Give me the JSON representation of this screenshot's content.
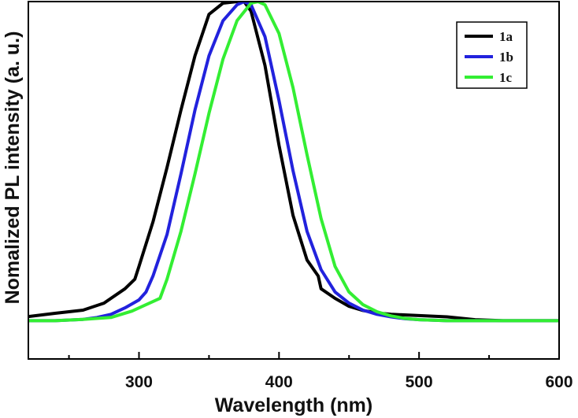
{
  "chart_data": {
    "type": "line",
    "title": "",
    "xlabel": "Wavelength (nm)",
    "ylabel": "Nomalized PL intensity (a. u.)",
    "xlim": [
      221,
      600
    ],
    "ylim": [
      -0.12,
      1.0
    ],
    "grid": false,
    "legend_position": "top-right",
    "x_ticks": [
      300,
      400,
      500,
      600
    ],
    "x_tick_labels": [
      "300",
      "400",
      "500",
      "600"
    ],
    "series": [
      {
        "name": "1a",
        "color": "#000000",
        "x": [
          221,
          240,
          260,
          275,
          290,
          297,
          300,
          310,
          320,
          330,
          340,
          350,
          360,
          370,
          375,
          380,
          390,
          400,
          410,
          420,
          428,
          430,
          440,
          450,
          460,
          470,
          480,
          500,
          520,
          540,
          560,
          580,
          600
        ],
        "y": [
          0.013,
          0.023,
          0.033,
          0.055,
          0.1,
          0.13,
          0.17,
          0.31,
          0.48,
          0.66,
          0.83,
          0.96,
          0.995,
          1.0,
          1.0,
          0.97,
          0.8,
          0.55,
          0.33,
          0.19,
          0.14,
          0.1,
          0.07,
          0.045,
          0.032,
          0.024,
          0.02,
          0.016,
          0.012,
          0.003,
          0.0,
          0.0,
          0.0
        ]
      },
      {
        "name": "1b",
        "color": "#2222dd",
        "x": [
          221,
          240,
          260,
          270,
          280,
          290,
          300,
          305,
          310,
          320,
          330,
          340,
          350,
          360,
          370,
          375,
          380,
          390,
          400,
          410,
          420,
          430,
          440,
          450,
          460,
          470,
          480,
          490,
          500,
          520,
          540,
          560,
          600
        ],
        "y": [
          0.0,
          0.0,
          0.004,
          0.01,
          0.02,
          0.04,
          0.065,
          0.09,
          0.14,
          0.27,
          0.46,
          0.66,
          0.83,
          0.94,
          0.99,
          1.0,
          0.99,
          0.89,
          0.69,
          0.47,
          0.28,
          0.16,
          0.09,
          0.055,
          0.033,
          0.02,
          0.012,
          0.006,
          0.003,
          0.0,
          0.0,
          0.0,
          0.0
        ]
      },
      {
        "name": "1c",
        "color": "#33ee33",
        "x": [
          221,
          240,
          260,
          280,
          295,
          305,
          315,
          320,
          330,
          340,
          350,
          360,
          370,
          380,
          385,
          390,
          400,
          410,
          420,
          430,
          440,
          450,
          460,
          470,
          480,
          490,
          500,
          520,
          540,
          560,
          600
        ],
        "y": [
          0.0,
          0.0,
          0.004,
          0.01,
          0.03,
          0.05,
          0.07,
          0.13,
          0.28,
          0.46,
          0.65,
          0.82,
          0.94,
          0.995,
          1.0,
          0.99,
          0.9,
          0.73,
          0.52,
          0.32,
          0.17,
          0.09,
          0.05,
          0.028,
          0.015,
          0.007,
          0.003,
          0.0,
          0.0,
          0.0,
          0.0
        ]
      }
    ]
  }
}
